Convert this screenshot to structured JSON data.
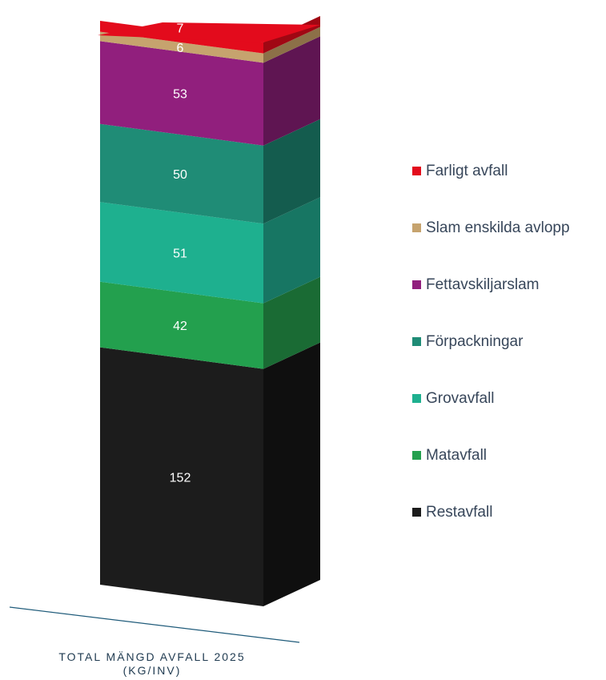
{
  "chart_data": {
    "type": "bar",
    "stacked": true,
    "three_d": true,
    "categories": [
      "TOTAL MÄNGD AVFALL 2025"
    ],
    "xlabel": "TOTAL MÄNGD AVFALL 2025",
    "xlabel_unit": "(KG/INV)",
    "legend_position": "right",
    "series": [
      {
        "name": "Restavfall",
        "values": [
          152
        ],
        "color": "#1c1c1c",
        "side_color": "#0f0f0f"
      },
      {
        "name": "Matavfall",
        "values": [
          42
        ],
        "color": "#23a04e",
        "side_color": "#1a6b34"
      },
      {
        "name": "Grovavfall",
        "values": [
          51
        ],
        "color": "#1eb08f",
        "side_color": "#177663"
      },
      {
        "name": "Förpackningar",
        "values": [
          50
        ],
        "color": "#1f8c76",
        "side_color": "#145c4e"
      },
      {
        "name": "Fettavskiljarslam",
        "values": [
          53
        ],
        "color": "#911f7d",
        "side_color": "#5f1552"
      },
      {
        "name": "Slam enskilda avlopp",
        "values": [
          6
        ],
        "color": "#c6a36e",
        "side_color": "#8c7048"
      },
      {
        "name": "Farligt avfall",
        "values": [
          7
        ],
        "color": "#e30b1c",
        "side_color": "#a00713"
      }
    ],
    "legend_order": [
      "Farligt avfall",
      "Slam enskilda avlopp",
      "Fettavskiljarslam",
      "Förpackningar",
      "Grovavfall",
      "Matavfall",
      "Restavfall"
    ]
  }
}
